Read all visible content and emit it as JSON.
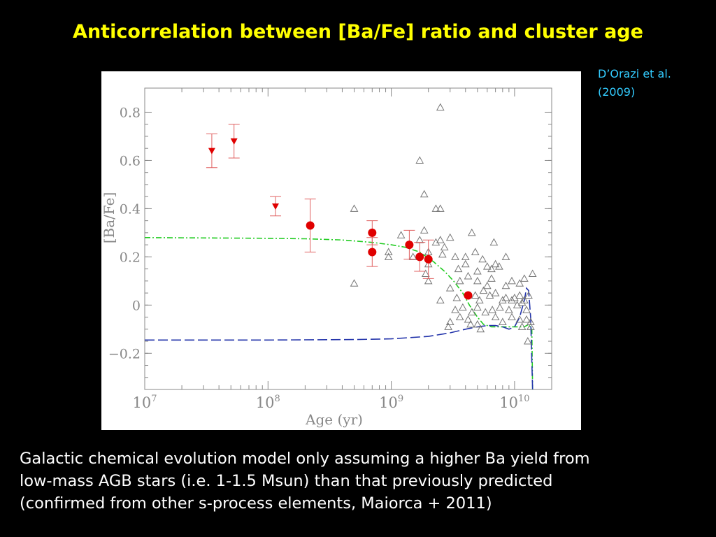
{
  "slide": {
    "title": "Anticorrelation between [Ba/Fe] ratio and cluster age",
    "citation_line1": "D’Orazi et al.",
    "citation_line2": "(2009)",
    "caption_line1": "Galactic chemical evolution model only assuming a higher Ba yield from",
    "caption_line2": "low-mass AGB stars (i.e. 1-1.5 Msun) than that previously predicted",
    "caption_line3": "(confirmed from other s-process elements, Maiorca + 2011)"
  },
  "chart_data": {
    "type": "scatter",
    "xlabel": "Age (yr)",
    "ylabel": "[Ba/Fe]",
    "x_scale": "log",
    "xlim": [
      10000000,
      20000000000
    ],
    "ylim": [
      -0.35,
      0.9
    ],
    "x_ticks": [
      {
        "value": 10000000,
        "base": "10",
        "exp": "7"
      },
      {
        "value": 100000000,
        "base": "10",
        "exp": "8"
      },
      {
        "value": 1000000000,
        "base": "10",
        "exp": "9"
      },
      {
        "value": 10000000000,
        "base": "10",
        "exp": "10"
      }
    ],
    "y_ticks": [
      {
        "value": 0.8,
        "label": "0.8"
      },
      {
        "value": 0.6,
        "label": "0.6"
      },
      {
        "value": 0.4,
        "label": "0.4"
      },
      {
        "value": 0.2,
        "label": "0.2"
      },
      {
        "value": 0.0,
        "label": "0"
      },
      {
        "value": -0.2,
        "label": "−0.2"
      }
    ],
    "colors": {
      "red": "#e00000",
      "triangle": "#777777",
      "green": "#22cc22",
      "blue": "#2233aa",
      "axis": "#888888"
    },
    "series": [
      {
        "marker": "triangle-down",
        "points": [
          {
            "x": 35000000,
            "y": 0.64,
            "err": 0.07
          },
          {
            "x": 53000000,
            "y": 0.68,
            "err": 0.07
          },
          {
            "x": 115000000,
            "y": 0.41,
            "err": 0.04
          }
        ]
      },
      {
        "marker": "filled-circle",
        "points": [
          {
            "x": 220000000,
            "y": 0.33,
            "err": 0.11
          },
          {
            "x": 700000000,
            "y": 0.3,
            "err": 0.05
          },
          {
            "x": 700000000,
            "y": 0.22,
            "err": 0.06
          },
          {
            "x": 1400000000,
            "y": 0.25,
            "err": 0.06
          },
          {
            "x": 1700000000,
            "y": 0.2,
            "err": 0.06
          },
          {
            "x": 2000000000,
            "y": 0.19,
            "err": 0.08
          },
          {
            "x": 4200000000,
            "y": 0.04,
            "err": 0.0
          }
        ]
      },
      {
        "marker": "open-triangle",
        "points": [
          {
            "x": 2500000000,
            "y": 0.82
          },
          {
            "x": 1700000000,
            "y": 0.6
          },
          {
            "x": 1850000000,
            "y": 0.46
          },
          {
            "x": 2300000000,
            "y": 0.4
          },
          {
            "x": 2500000000,
            "y": 0.4
          },
          {
            "x": 500000000,
            "y": 0.4
          },
          {
            "x": 1850000000,
            "y": 0.31
          },
          {
            "x": 1700000000,
            "y": 0.27
          },
          {
            "x": 1200000000,
            "y": 0.29
          },
          {
            "x": 2300000000,
            "y": 0.26
          },
          {
            "x": 2500000000,
            "y": 0.27
          },
          {
            "x": 3000000000,
            "y": 0.28
          },
          {
            "x": 4500000000,
            "y": 0.3
          },
          {
            "x": 950000000,
            "y": 0.22
          },
          {
            "x": 950000000,
            "y": 0.2
          },
          {
            "x": 1500000000,
            "y": 0.2
          },
          {
            "x": 2000000000,
            "y": 0.22
          },
          {
            "x": 2700000000,
            "y": 0.24
          },
          {
            "x": 2600000000,
            "y": 0.21
          },
          {
            "x": 3300000000,
            "y": 0.2
          },
          {
            "x": 4000000000,
            "y": 0.2
          },
          {
            "x": 4800000000,
            "y": 0.22
          },
          {
            "x": 6800000000,
            "y": 0.26
          },
          {
            "x": 2000000000,
            "y": 0.17
          },
          {
            "x": 1900000000,
            "y": 0.13
          },
          {
            "x": 3500000000,
            "y": 0.15
          },
          {
            "x": 4000000000,
            "y": 0.17
          },
          {
            "x": 5500000000,
            "y": 0.19
          },
          {
            "x": 6000000000,
            "y": 0.16
          },
          {
            "x": 6500000000,
            "y": 0.15
          },
          {
            "x": 7000000000,
            "y": 0.17
          },
          {
            "x": 7500000000,
            "y": 0.16
          },
          {
            "x": 8500000000,
            "y": 0.2
          },
          {
            "x": 2000000000,
            "y": 0.1
          },
          {
            "x": 3000000000,
            "y": 0.07
          },
          {
            "x": 3600000000,
            "y": 0.1
          },
          {
            "x": 4200000000,
            "y": 0.12
          },
          {
            "x": 5000000000,
            "y": 0.14
          },
          {
            "x": 5000000000,
            "y": 0.1
          },
          {
            "x": 6500000000,
            "y": 0.11
          },
          {
            "x": 5600000000,
            "y": 0.06
          },
          {
            "x": 6000000000,
            "y": 0.08
          },
          {
            "x": 8500000000,
            "y": 0.08
          },
          {
            "x": 9500000000,
            "y": 0.1
          },
          {
            "x": 11000000000,
            "y": 0.09
          },
          {
            "x": 12000000000,
            "y": 0.11
          },
          {
            "x": 14000000000,
            "y": 0.13
          },
          {
            "x": 500000000,
            "y": 0.09
          },
          {
            "x": 2500000000,
            "y": 0.02
          },
          {
            "x": 3400000000,
            "y": 0.03
          },
          {
            "x": 4800000000,
            "y": 0.04
          },
          {
            "x": 6300000000,
            "y": 0.04
          },
          {
            "x": 7000000000,
            "y": 0.05
          },
          {
            "x": 8500000000,
            "y": 0.03
          },
          {
            "x": 9500000000,
            "y": 0.02
          },
          {
            "x": 10000000000,
            "y": 0.03
          },
          {
            "x": 11000000000,
            "y": 0.04
          },
          {
            "x": 12000000000,
            "y": 0.02
          },
          {
            "x": 13000000000,
            "y": 0.04
          },
          {
            "x": 5200000000,
            "y": 0.02
          },
          {
            "x": 3300000000,
            "y": -0.02
          },
          {
            "x": 3800000000,
            "y": -0.01
          },
          {
            "x": 4500000000,
            "y": -0.03
          },
          {
            "x": 5000000000,
            "y": -0.01
          },
          {
            "x": 5800000000,
            "y": -0.03
          },
          {
            "x": 6600000000,
            "y": -0.02
          },
          {
            "x": 7600000000,
            "y": -0.01
          },
          {
            "x": 8000000000,
            "y": 0.02
          },
          {
            "x": 9000000000,
            "y": -0.02
          },
          {
            "x": 10500000000,
            "y": 0.0
          },
          {
            "x": 11500000000,
            "y": 0.01
          },
          {
            "x": 12500000000,
            "y": -0.02
          },
          {
            "x": 3600000000,
            "y": -0.05
          },
          {
            "x": 4200000000,
            "y": -0.06
          },
          {
            "x": 5000000000,
            "y": -0.08
          },
          {
            "x": 7000000000,
            "y": -0.05
          },
          {
            "x": 8000000000,
            "y": -0.07
          },
          {
            "x": 9500000000,
            "y": -0.05
          },
          {
            "x": 11000000000,
            "y": -0.06
          },
          {
            "x": 12500000000,
            "y": -0.06
          },
          {
            "x": 13500000000,
            "y": -0.07
          },
          {
            "x": 3000000000,
            "y": -0.07
          },
          {
            "x": 2900000000,
            "y": -0.09
          },
          {
            "x": 4400000000,
            "y": -0.08
          },
          {
            "x": 5300000000,
            "y": -0.1
          },
          {
            "x": 11500000000,
            "y": -0.09
          },
          {
            "x": 13500000000,
            "y": -0.09
          },
          {
            "x": 12800000000,
            "y": -0.15
          }
        ]
      },
      {
        "style": "dash-dot",
        "color": "green",
        "points": [
          [
            10000000,
            0.28
          ],
          [
            50000000,
            0.278
          ],
          [
            100000000,
            0.277
          ],
          [
            200000000,
            0.275
          ],
          [
            400000000,
            0.27
          ],
          [
            700000000,
            0.26
          ],
          [
            1000000000,
            0.25
          ],
          [
            1300000000,
            0.24
          ],
          [
            1700000000,
            0.22
          ],
          [
            2200000000,
            0.18
          ],
          [
            2700000000,
            0.14
          ],
          [
            3200000000,
            0.1
          ],
          [
            3800000000,
            0.05
          ],
          [
            4300000000,
            0.0
          ],
          [
            5000000000,
            -0.05
          ],
          [
            5600000000,
            -0.08
          ],
          [
            6500000000,
            -0.09
          ],
          [
            8000000000,
            -0.09
          ],
          [
            10000000000,
            -0.09
          ],
          [
            12000000000,
            -0.09
          ],
          [
            13000000000,
            -0.08
          ],
          [
            13800000000,
            -0.1
          ],
          [
            14000000000,
            -0.35
          ]
        ]
      },
      {
        "style": "long-dash",
        "color": "blue",
        "points": [
          [
            10000000,
            -0.145
          ],
          [
            100000000,
            -0.145
          ],
          [
            500000000,
            -0.143
          ],
          [
            1000000000,
            -0.14
          ],
          [
            2000000000,
            -0.13
          ],
          [
            3000000000,
            -0.115
          ],
          [
            4000000000,
            -0.1
          ],
          [
            5000000000,
            -0.09
          ],
          [
            6000000000,
            -0.085
          ],
          [
            7000000000,
            -0.085
          ],
          [
            8000000000,
            -0.09
          ],
          [
            9000000000,
            -0.1
          ],
          [
            10000000000,
            -0.09
          ],
          [
            11000000000,
            -0.05
          ],
          [
            12000000000,
            0.02
          ],
          [
            12500000000,
            0.07
          ],
          [
            13000000000,
            0.06
          ],
          [
            13500000000,
            -0.05
          ],
          [
            14000000000,
            -0.35
          ]
        ]
      }
    ]
  }
}
